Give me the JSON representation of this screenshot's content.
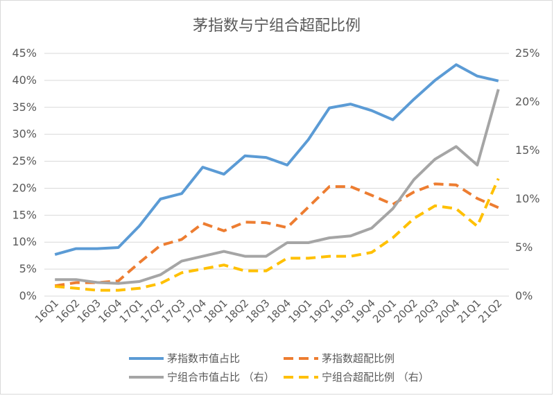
{
  "chart_data": {
    "type": "line",
    "title": "茅指数与宁组合超配比例",
    "categories": [
      "16Q1",
      "16Q2",
      "16Q3",
      "16Q4",
      "17Q1",
      "17Q2",
      "17Q3",
      "17Q4",
      "18Q1",
      "18Q2",
      "18Q3",
      "18Q4",
      "19Q1",
      "19Q2",
      "19Q3",
      "19Q4",
      "20Q1",
      "20Q2",
      "20Q3",
      "20Q4",
      "21Q1",
      "21Q2"
    ],
    "left_axis": {
      "ylim": [
        0,
        45
      ],
      "ticks": [
        0,
        5,
        10,
        15,
        20,
        25,
        30,
        35,
        40,
        45
      ],
      "tick_labels": [
        "0%",
        "5%",
        "10%",
        "15%",
        "20%",
        "25%",
        "30%",
        "35%",
        "40%",
        "45%"
      ]
    },
    "right_axis": {
      "ylim": [
        0,
        25
      ],
      "ticks": [
        0,
        5,
        10,
        15,
        20,
        25
      ],
      "tick_labels": [
        "0%",
        "5%",
        "10%",
        "15%",
        "20%",
        "25%"
      ]
    },
    "series": [
      {
        "name": "茅指数市值占比",
        "axis": "left",
        "color": "#5B9BD5",
        "dashed": false,
        "values": [
          7.7,
          8.8,
          8.8,
          9.0,
          13.0,
          18.0,
          19.0,
          23.9,
          22.6,
          26.0,
          25.7,
          24.3,
          29.0,
          34.9,
          35.6,
          34.4,
          32.7,
          36.5,
          40.0,
          42.9,
          40.8,
          39.9
        ]
      },
      {
        "name": "茅指数超配比例",
        "axis": "left",
        "color": "#ED7D31",
        "dashed": true,
        "values": [
          1.9,
          2.5,
          2.5,
          2.8,
          6.2,
          9.4,
          10.5,
          13.5,
          12.1,
          13.7,
          13.6,
          12.7,
          16.5,
          20.3,
          20.3,
          18.7,
          17.0,
          19.3,
          20.8,
          20.6,
          18.1,
          16.4
        ]
      },
      {
        "name": "宁组合市值占比 （右）",
        "axis": "right",
        "color": "#A5A5A5",
        "dashed": false,
        "values": [
          1.7,
          1.7,
          1.4,
          1.3,
          1.5,
          2.2,
          3.6,
          4.1,
          4.6,
          4.1,
          4.1,
          5.5,
          5.5,
          6.0,
          6.2,
          7.0,
          9.0,
          12.0,
          14.1,
          15.4,
          13.5,
          21.3
        ]
      },
      {
        "name": "宁组合超配比例 （右）",
        "axis": "right",
        "color": "#FFC000",
        "dashed": true,
        "values": [
          1.0,
          0.8,
          0.6,
          0.6,
          0.8,
          1.3,
          2.4,
          2.8,
          3.2,
          2.6,
          2.6,
          3.9,
          3.9,
          4.1,
          4.1,
          4.5,
          6.0,
          8.0,
          9.3,
          9.0,
          7.2,
          12.1
        ]
      }
    ]
  }
}
